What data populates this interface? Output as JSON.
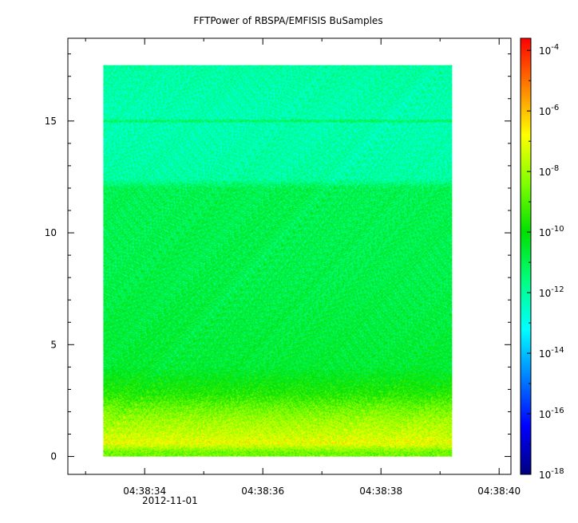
{
  "chart_data": {
    "type": "heatmap",
    "title": "FFTPower of RBSPA/EMFISIS  BuSamples",
    "xlabel": "",
    "ylabel": "",
    "x_range": [
      "04:38:32.7",
      "04:38:40.2"
    ],
    "x_ticks": [
      {
        "label": "04:38:34",
        "seconds": 34
      },
      {
        "label": "04:38:36",
        "seconds": 36
      },
      {
        "label": "04:38:38",
        "seconds": 38
      },
      {
        "label": "04:38:40",
        "seconds": 40
      }
    ],
    "x_minor_tick_seconds": [
      33,
      35,
      37,
      39
    ],
    "x_date_label": "2012-11-01",
    "ylim": [
      -0.8,
      18.7
    ],
    "y_ticks": [
      0,
      5,
      10,
      15
    ],
    "data_extent": {
      "x_start_seconds": 33.3,
      "x_end_seconds": 39.2,
      "y_min": 0,
      "y_max": 17.5
    },
    "power_profile": [
      {
        "y": 0.2,
        "log10_power": -8.6
      },
      {
        "y": 0.6,
        "log10_power": -7.0
      },
      {
        "y": 1.0,
        "log10_power": -7.5
      },
      {
        "y": 1.6,
        "log10_power": -8.0
      },
      {
        "y": 2.2,
        "log10_power": -8.7
      },
      {
        "y": 2.8,
        "log10_power": -9.6
      },
      {
        "y": 4.0,
        "log10_power": -10.6
      },
      {
        "y": 8.0,
        "log10_power": -10.9
      },
      {
        "y": 12.0,
        "log10_power": -11.0
      },
      {
        "y": 12.4,
        "log10_power": -12.0
      },
      {
        "y": 14.9,
        "log10_power": -12.2
      },
      {
        "y": 15.0,
        "log10_power": -11.0
      },
      {
        "y": 15.1,
        "log10_power": -12.2
      },
      {
        "y": 17.5,
        "log10_power": -12.0
      }
    ],
    "colorbar": {
      "scale": "log",
      "range_exp": [
        -18,
        -3.6
      ],
      "tick_exponents": [
        -4,
        -6,
        -8,
        -10,
        -12,
        -14,
        -16,
        -18
      ],
      "tick_base": "10",
      "colors": [
        "#00007f",
        "#0000ff",
        "#0080ff",
        "#00ffff",
        "#00ff80",
        "#00e000",
        "#80ff00",
        "#ffff00",
        "#ff8000",
        "#ff0000"
      ]
    },
    "grid": false
  }
}
